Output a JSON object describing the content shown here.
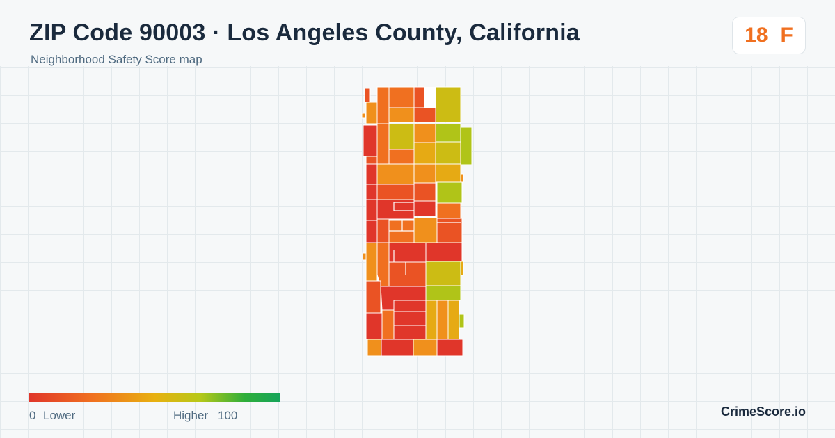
{
  "header": {
    "title": "ZIP Code 90003 · Los Angeles County, California",
    "subtitle": "Neighborhood Safety Score map"
  },
  "score_badge": {
    "score": "18",
    "grade": "F",
    "color": "#f07020"
  },
  "legend": {
    "min_label": "0",
    "low_label": "Lower",
    "high_label": "Higher",
    "max_label": "100",
    "scale_min": 0,
    "scale_max": 100
  },
  "brand": "CrimeScore.io",
  "colors": {
    "red": "#e0362a",
    "red_orange": "#ea5324",
    "orange": "#f07020",
    "amber": "#f0901c",
    "yellow": "#e6aa14",
    "olive": "#ccbc14",
    "yellow_green": "#b0c418",
    "green": "#16a45a"
  }
}
